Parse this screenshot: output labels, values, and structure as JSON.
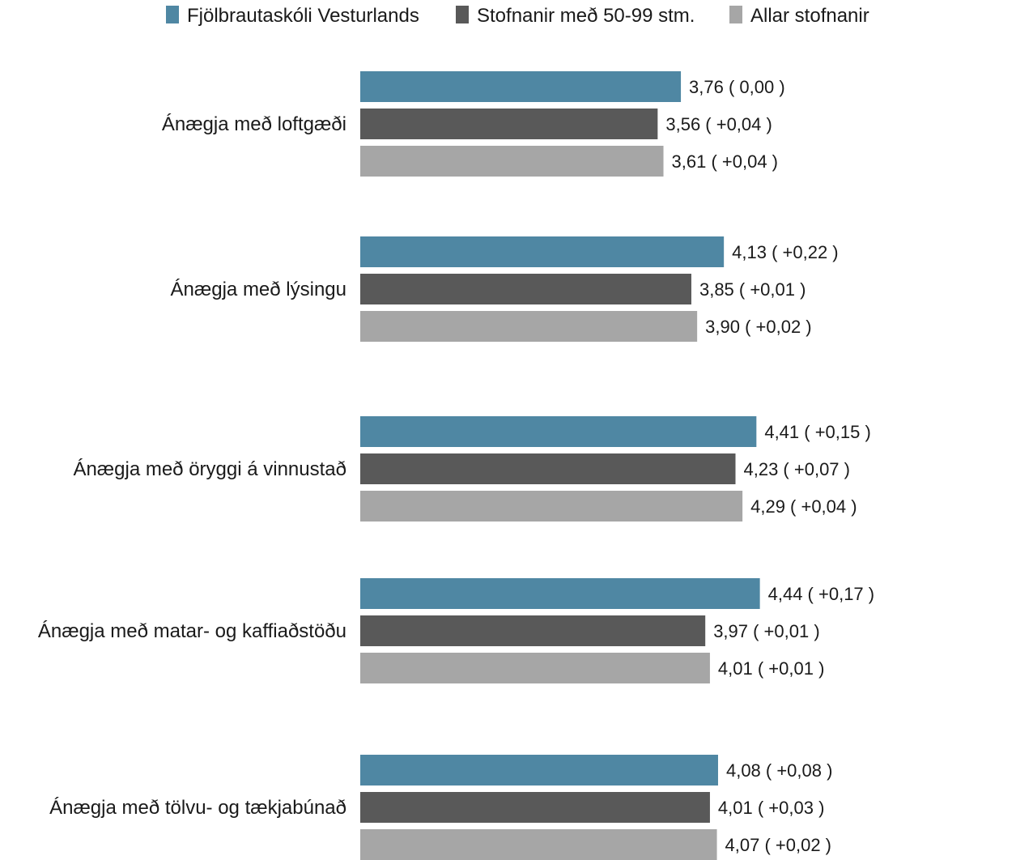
{
  "chart_data": {
    "type": "bar",
    "orientation": "horizontal",
    "categories": [
      "Ánægja með loftgæði",
      "Ánægja með lýsingu",
      "Ánægja með öryggi á vinnustað",
      "Ánægja með matar- og kaffiaðstöðu",
      "Ánægja með tölvu- og tækjabúnað"
    ],
    "series": [
      {
        "name": "Fjölbrautaskóli Vesturlands",
        "color": "#4f87a3",
        "values": [
          3.76,
          4.13,
          4.41,
          4.44,
          4.08
        ],
        "labels": [
          "3,76 ( 0,00 )",
          "4,13 ( +0,22 )",
          "4,41 ( +0,15 )",
          "4,44 ( +0,17 )",
          "4,08 ( +0,08 )"
        ]
      },
      {
        "name": "Stofnanir með 50-99 stm.",
        "color": "#595959",
        "values": [
          3.56,
          3.85,
          4.23,
          3.97,
          4.01
        ],
        "labels": [
          "3,56 ( +0,04 )",
          "3,85 ( +0,01 )",
          "4,23 ( +0,07 )",
          "3,97 ( +0,01 )",
          "4,01 ( +0,03 )"
        ]
      },
      {
        "name": "Allar stofnanir",
        "color": "#a6a6a6",
        "values": [
          3.61,
          3.9,
          4.29,
          4.01,
          4.07
        ],
        "labels": [
          "3,61 ( +0,04 )",
          "3,90 ( +0,02 )",
          "4,29 ( +0,04 )",
          "4,01 ( +0,01 )",
          "4,07 ( +0,02 )"
        ]
      }
    ],
    "xlim": [
      1,
      5
    ],
    "grid": false,
    "legend_position": "top"
  }
}
